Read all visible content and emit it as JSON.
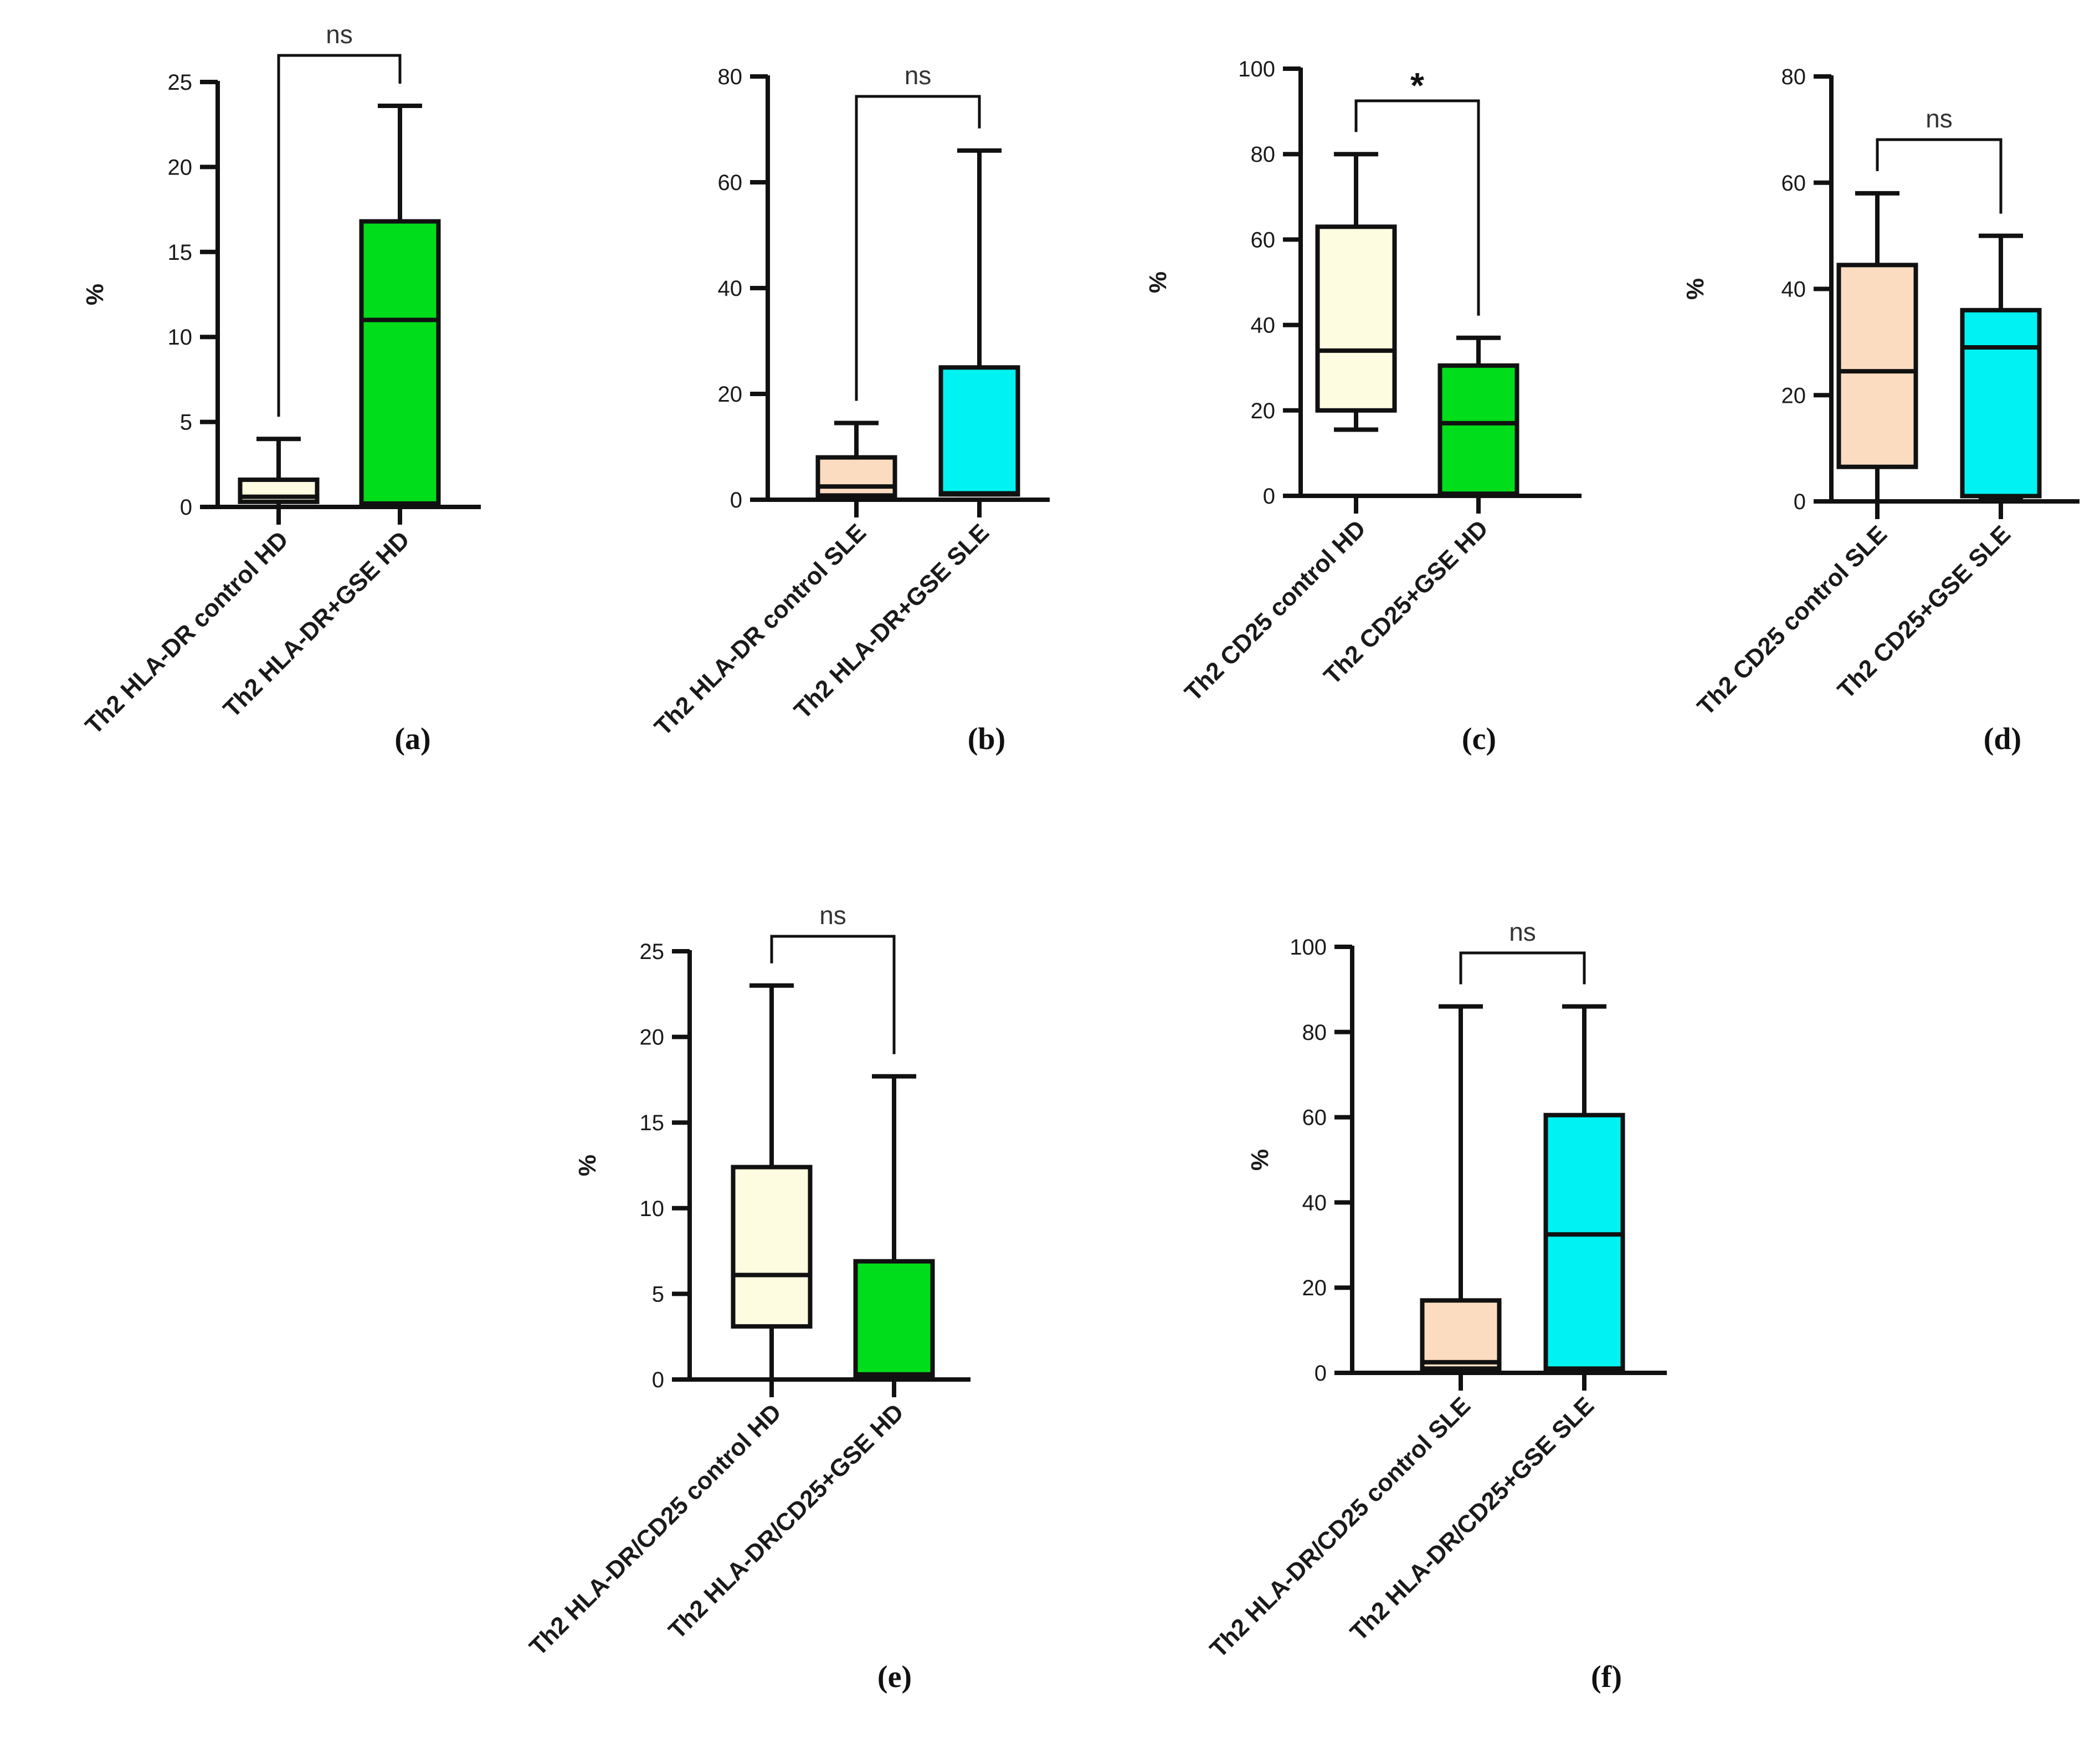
{
  "colors": {
    "cream": "#fdfbe0",
    "peach": "#fcdcc0",
    "green": "#00dd1a",
    "cyan": "#00f2f2",
    "axis": "#111111"
  },
  "chart_data": [
    {
      "type": "box",
      "panel": "(a)",
      "ylabel": "%",
      "ylim": [
        0,
        25
      ],
      "yticks": [
        "0",
        "5",
        "10",
        "15",
        "20",
        "25"
      ],
      "categories": [
        "Th2 HLA-DR control HD",
        "Th2 HLA-DR+GSE HD"
      ],
      "boxes": [
        {
          "min": 0,
          "q1": 0.3,
          "median": 0.6,
          "q3": 1.6,
          "max": 4.0,
          "fill": "cream"
        },
        {
          "min": 0.2,
          "q1": 0.2,
          "median": 11.0,
          "q3": 16.8,
          "max": 23.6,
          "fill": "green"
        }
      ],
      "significance": "ns"
    },
    {
      "type": "box",
      "panel": "(b)",
      "ylabel": "",
      "ylim": [
        0,
        80
      ],
      "yticks": [
        "0",
        "20",
        "40",
        "60",
        "80"
      ],
      "categories": [
        "Th2 HLA-DR control SLE",
        "Th2 HLA-DR+GSE SLE"
      ],
      "boxes": [
        {
          "min": 0,
          "q1": 0.8,
          "median": 2.5,
          "q3": 8.0,
          "max": 14.5,
          "fill": "peach"
        },
        {
          "min": 1.0,
          "q1": 1.0,
          "median": 1.2,
          "q3": 25.0,
          "max": 66.0,
          "fill": "cyan"
        }
      ],
      "significance": "ns"
    },
    {
      "type": "box",
      "panel": "(c)",
      "ylabel": "%",
      "ylim": [
        0,
        100
      ],
      "yticks": [
        "0",
        "20",
        "40",
        "60",
        "80",
        "100"
      ],
      "categories": [
        "Th2 CD25 control HD",
        "Th2 CD25+GSE HD"
      ],
      "boxes": [
        {
          "min": 15.5,
          "q1": 20.0,
          "median": 34.0,
          "q3": 63.0,
          "max": 80.0,
          "fill": "cream"
        },
        {
          "min": 0.5,
          "q1": 0.5,
          "median": 17.0,
          "q3": 30.5,
          "max": 37.0,
          "fill": "green"
        }
      ],
      "significance": "*"
    },
    {
      "type": "box",
      "panel": "(d)",
      "ylabel": "%",
      "ylim": [
        0,
        80
      ],
      "yticks": [
        "0",
        "20",
        "40",
        "60",
        "80"
      ],
      "categories": [
        "Th2 CD25 control SLE",
        "Th2 CD25+GSE SLE"
      ],
      "boxes": [
        {
          "min": 0,
          "q1": 6.5,
          "median": 24.5,
          "q3": 44.5,
          "max": 58.0,
          "fill": "peach"
        },
        {
          "min": 0.5,
          "q1": 1.0,
          "median": 29.0,
          "q3": 36.0,
          "max": 50.0,
          "fill": "cyan"
        }
      ],
      "significance": "ns"
    },
    {
      "type": "box",
      "panel": "(e)",
      "ylabel": "%",
      "ylim": [
        0,
        25
      ],
      "yticks": [
        "0",
        "5",
        "10",
        "15",
        "20",
        "25"
      ],
      "categories": [
        "Th2 HLA-DR/CD25 control HD",
        "Th2 HLA-DR/CD25+GSE HD"
      ],
      "boxes": [
        {
          "min": 0,
          "q1": 3.1,
          "median": 6.1,
          "q3": 12.4,
          "max": 23.0,
          "fill": "cream"
        },
        {
          "min": 0.2,
          "q1": 0.2,
          "median": 0.3,
          "q3": 6.9,
          "max": 17.7,
          "fill": "green"
        }
      ],
      "significance": "ns"
    },
    {
      "type": "box",
      "panel": "(f)",
      "ylabel": "%",
      "ylim": [
        0,
        100
      ],
      "yticks": [
        "0",
        "20",
        "40",
        "60",
        "80",
        "100"
      ],
      "categories": [
        "Th2 HLA-DR/CD25 control SLE",
        "Th2 HLA-DR/CD25+GSE SLE"
      ],
      "boxes": [
        {
          "min": 0.5,
          "q1": 1.0,
          "median": 2.5,
          "q3": 17.0,
          "max": 86.0,
          "fill": "peach"
        },
        {
          "min": 1.0,
          "q1": 1.0,
          "median": 32.5,
          "q3": 60.5,
          "max": 86.0,
          "fill": "cyan"
        }
      ],
      "significance": "ns"
    }
  ]
}
